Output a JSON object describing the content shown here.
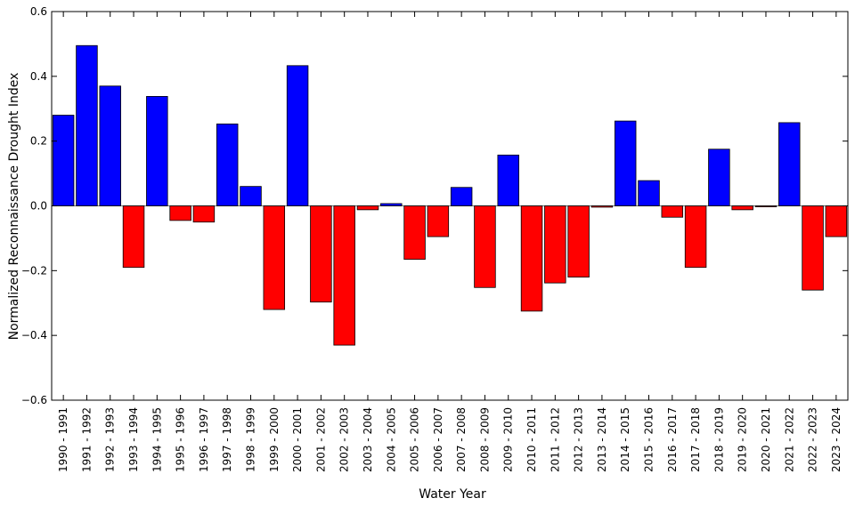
{
  "chart_data": {
    "type": "bar",
    "title": "",
    "xlabel": "Water Year",
    "ylabel": "Normalized Reconnaissance Drought Index",
    "ylim": [
      -0.6,
      0.6
    ],
    "yticks": [
      -0.6,
      -0.4,
      -0.2,
      0.0,
      0.2,
      0.4,
      0.6
    ],
    "ytick_labels": [
      "−0.6",
      "−0.4",
      "−0.2",
      "0.0",
      "0.2",
      "0.4",
      "0.6"
    ],
    "grid": false,
    "legend": "none",
    "colors": {
      "positive": "#0000ff",
      "negative": "#ff0000"
    },
    "categories": [
      "1990 - 1991",
      "1991 - 1992",
      "1992 - 1993",
      "1993 - 1994",
      "1994 - 1995",
      "1995 - 1996",
      "1996 - 1997",
      "1997 - 1998",
      "1998 - 1999",
      "1999 - 2000",
      "2000 - 2001",
      "2001 - 2002",
      "2002 - 2003",
      "2003 - 2004",
      "2004 - 2005",
      "2005 - 2006",
      "2006 - 2007",
      "2007 - 2008",
      "2008 - 2009",
      "2009 - 2010",
      "2010 - 2011",
      "2011 - 2012",
      "2012 - 2013",
      "2013 - 2014",
      "2014 - 2015",
      "2015 - 2016",
      "2016 - 2017",
      "2017 - 2018",
      "2018 - 2019",
      "2019 - 2020",
      "2020 - 2021",
      "2021 - 2022",
      "2022 - 2023",
      "2023 - 2024"
    ],
    "values": [
      0.28,
      0.495,
      0.37,
      -0.19,
      0.338,
      -0.045,
      -0.05,
      0.253,
      0.06,
      -0.32,
      0.433,
      -0.297,
      -0.43,
      -0.012,
      0.007,
      -0.165,
      -0.095,
      0.057,
      -0.252,
      0.157,
      -0.325,
      -0.238,
      -0.22,
      -0.004,
      0.262,
      0.078,
      -0.035,
      -0.19,
      0.175,
      -0.012,
      -0.003,
      0.257,
      -0.26,
      -0.095
    ]
  }
}
